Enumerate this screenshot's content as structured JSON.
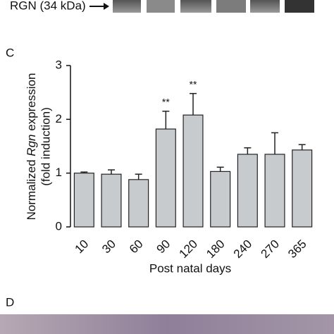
{
  "blot_label": "RGN (34 kDa)",
  "panel_labels": [
    "C",
    "D"
  ],
  "chart_data": {
    "type": "bar",
    "ylabel_parts": [
      "Normalized ",
      "Rgn",
      " expression"
    ],
    "ylabel_line2": "(fold induction)",
    "xlabel": "Post natal days",
    "categories": [
      "10",
      "30",
      "60",
      "90",
      "120",
      "180",
      "240",
      "270",
      "365"
    ],
    "values": [
      1.0,
      0.98,
      0.88,
      1.82,
      2.08,
      1.03,
      1.35,
      1.35,
      1.43
    ],
    "errors": [
      0.02,
      0.08,
      0.1,
      0.33,
      0.4,
      0.08,
      0.12,
      0.4,
      0.1
    ],
    "annotations": [
      null,
      null,
      null,
      "**",
      "**",
      null,
      null,
      null,
      null
    ],
    "color": "#c8cbcd",
    "ylim": [
      0,
      3
    ],
    "yticks": [
      0,
      1,
      2,
      3
    ],
    "grid": false
  }
}
